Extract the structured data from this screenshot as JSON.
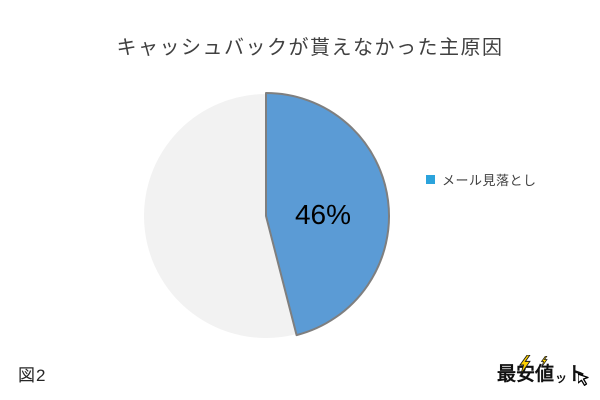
{
  "page": {
    "background": "#FFFFFF"
  },
  "figure_label": "図2",
  "logo": {
    "text": "最安値ット",
    "chars": [
      "最",
      "安",
      "値",
      "ッ",
      "ト"
    ],
    "bolt_color": "#FFD200"
  },
  "chart_data": {
    "type": "pie",
    "title": "キャッシュバックが貰えなかった主原因",
    "start_angle_deg": 0,
    "direction": "clockwise",
    "legend": {
      "position": "right",
      "entries": [
        "メール見落とし"
      ]
    },
    "slices": [
      {
        "label": "メール見落とし",
        "value": 46,
        "percent_label": "46%",
        "color": "#5B9BD5",
        "border_color": "#7F7F7F",
        "legend_marker_color": "#2BA3DC",
        "in_legend": true
      },
      {
        "label": "",
        "value": 54,
        "percent_label": "",
        "color": "#F2F2F2",
        "border_color": "#FFFFFF",
        "in_legend": false
      }
    ]
  }
}
